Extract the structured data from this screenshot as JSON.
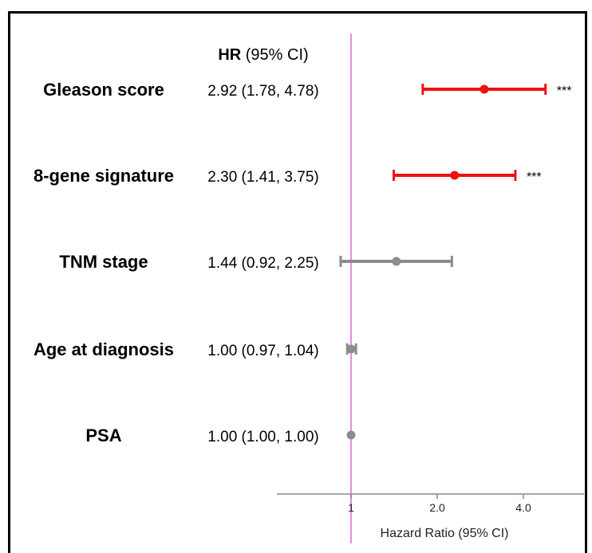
{
  "chart_data": {
    "type": "forest",
    "header": {
      "bold": "HR",
      "rest": " (95% CI)"
    },
    "xlabel": "Hazard Ratio (95% CI)",
    "xscale": "log2",
    "xticks": [
      {
        "value": 1.0,
        "label": "1"
      },
      {
        "value": 2.0,
        "label": "2.0"
      },
      {
        "value": 4.0,
        "label": "4.0"
      }
    ],
    "xlim": [
      0.75,
      6.5
    ],
    "reference_line": 1.0,
    "grid": false,
    "rows": [
      {
        "name": "Gleason score",
        "hr_text": "2.92 (1.78, 4.78)",
        "hr": 2.92,
        "lo": 1.78,
        "hi": 4.78,
        "sig": "***",
        "color": "#ee1111"
      },
      {
        "name": "8-gene signature",
        "hr_text": "2.30 (1.41, 3.75)",
        "hr": 2.3,
        "lo": 1.41,
        "hi": 3.75,
        "sig": "***",
        "color": "#ee1111"
      },
      {
        "name": "TNM stage",
        "hr_text": "1.44 (0.92, 2.25)",
        "hr": 1.44,
        "lo": 0.92,
        "hi": 2.25,
        "sig": "",
        "color": "#8c8c8c"
      },
      {
        "name": "Age at diagnosis",
        "hr_text": "1.00 (0.97, 1.04)",
        "hr": 1.0,
        "lo": 0.97,
        "hi": 1.04,
        "sig": "",
        "color": "#8c8c8c"
      },
      {
        "name": "PSA",
        "hr_text": "1.00 (1.00, 1.00)",
        "hr": 1.0,
        "lo": 1.0,
        "hi": 1.0,
        "sig": "",
        "color": "#8c8c8c"
      }
    ],
    "colors": {
      "significant": "#ee1111",
      "nonsignificant": "#8c8c8c",
      "reference_line": "#e08ee0",
      "axis": "#8a8a8a",
      "frame": "#000000"
    }
  }
}
